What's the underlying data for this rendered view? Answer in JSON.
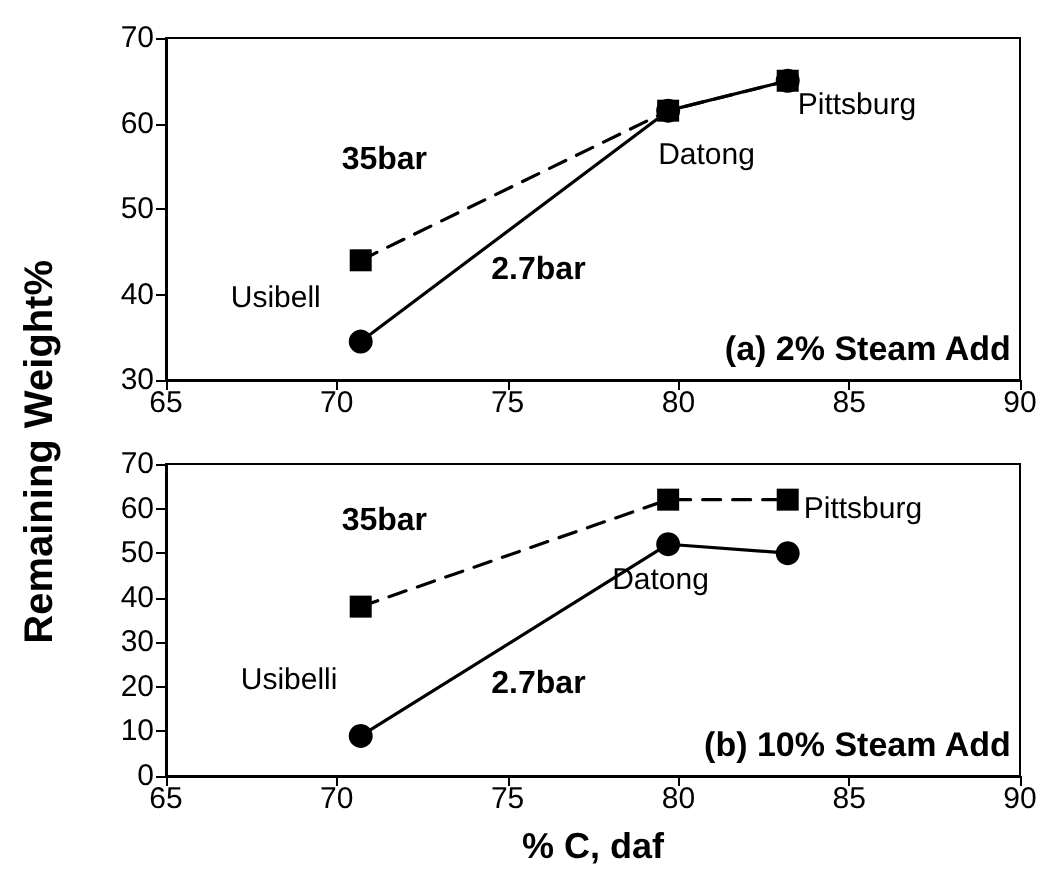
{
  "chart_data": [
    {
      "type": "line",
      "ylabel": "Remaining Weight%",
      "x": [
        70.7,
        79.7,
        83.2
      ],
      "xlim": [
        65,
        90
      ],
      "xticks": [
        65,
        70,
        75,
        80,
        85,
        90
      ],
      "ylim": [
        30,
        70
      ],
      "yticks": [
        30,
        40,
        50,
        60,
        70
      ],
      "grid": false,
      "legend": false,
      "series": [
        {
          "name": "35bar",
          "color": "#000000",
          "values": [
            44,
            61.5,
            65
          ],
          "marker": "square",
          "line_style": "dashed"
        },
        {
          "name": "2.7bar",
          "color": "#000000",
          "values": [
            34.5,
            61.5,
            65
          ],
          "marker": "circle",
          "line_style": "solid"
        }
      ],
      "annotations": [
        {
          "text": "Usibell",
          "x": 70.7,
          "y": 34.5
        },
        {
          "text": "Datong",
          "x": 79.7,
          "y": 61.5
        },
        {
          "text": "Pittsburg",
          "x": 83.2,
          "y": 65
        },
        "(a) 2% Steam Add"
      ]
    },
    {
      "type": "line",
      "xlabel": "% C, daf",
      "x": [
        70.7,
        79.7,
        83.2
      ],
      "xlim": [
        65,
        90
      ],
      "xticks": [
        65,
        70,
        75,
        80,
        85,
        90
      ],
      "ylim": [
        0,
        70
      ],
      "yticks": [
        0,
        10,
        20,
        30,
        40,
        50,
        60,
        70
      ],
      "grid": false,
      "legend": false,
      "series": [
        {
          "name": "35bar",
          "color": "#000000",
          "values": [
            38,
            62,
            62
          ],
          "marker": "square",
          "line_style": "dashed"
        },
        {
          "name": "2.7bar",
          "color": "#000000",
          "values": [
            9,
            52,
            50
          ],
          "marker": "circle",
          "line_style": "solid"
        }
      ],
      "annotations": [
        {
          "text": "Usibelli",
          "x": 70.7,
          "y": 9
        },
        {
          "text": "Datong",
          "x": 79.7,
          "y": 52
        },
        {
          "text": "Pittsburg",
          "x": 83.2,
          "y": 50
        },
        "(b) 10% Steam Add"
      ]
    }
  ]
}
